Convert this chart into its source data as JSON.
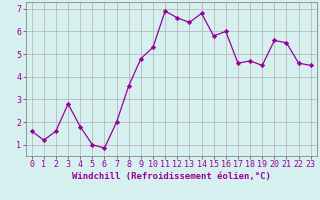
{
  "x": [
    0,
    1,
    2,
    3,
    4,
    5,
    6,
    7,
    8,
    9,
    10,
    11,
    12,
    13,
    14,
    15,
    16,
    17,
    18,
    19,
    20,
    21,
    22,
    23
  ],
  "y": [
    1.6,
    1.2,
    1.6,
    2.8,
    1.8,
    1.0,
    0.85,
    2.0,
    3.6,
    4.8,
    5.3,
    6.9,
    6.6,
    6.4,
    6.8,
    5.8,
    6.0,
    4.6,
    4.7,
    4.5,
    5.6,
    5.5,
    4.6,
    4.5
  ],
  "line_color": "#990099",
  "marker": "D",
  "marker_size": 2.2,
  "bg_color": "#d6f0f0",
  "grid_color": "#b0b0b0",
  "xlabel": "Windchill (Refroidissement éolien,°C)",
  "xlim": [
    -0.5,
    23.5
  ],
  "ylim": [
    0.5,
    7.3
  ],
  "yticks": [
    1,
    2,
    3,
    4,
    5,
    6,
    7
  ],
  "xticks": [
    0,
    1,
    2,
    3,
    4,
    5,
    6,
    7,
    8,
    9,
    10,
    11,
    12,
    13,
    14,
    15,
    16,
    17,
    18,
    19,
    20,
    21,
    22,
    23
  ],
  "tick_color": "#990099",
  "label_color": "#990099",
  "font_size_xlabel": 6.5,
  "font_size_ticks": 6.0,
  "line_width": 0.9,
  "spine_color": "#888888"
}
